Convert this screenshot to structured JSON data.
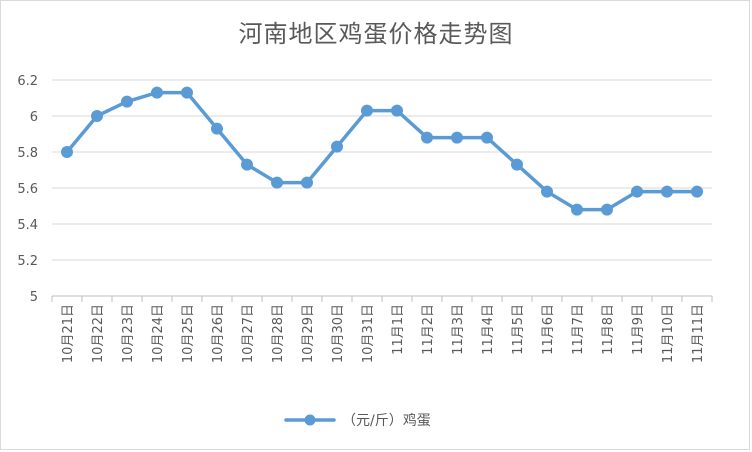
{
  "chart_data": {
    "type": "line",
    "title": "河南地区鸡蛋价格走势图",
    "categories": [
      "10月21日",
      "10月22日",
      "10月23日",
      "10月24日",
      "10月25日",
      "10月26日",
      "10月27日",
      "10月28日",
      "10月29日",
      "10月30日",
      "10月31日",
      "11月1日",
      "11月2日",
      "11月3日",
      "11月4日",
      "11月5日",
      "11月6日",
      "11月7日",
      "11月8日",
      "11月9日",
      "11月10日",
      "11月11日"
    ],
    "series": [
      {
        "name": "（元/斤）鸡蛋",
        "values": [
          5.8,
          6.0,
          6.08,
          6.13,
          6.13,
          5.93,
          5.73,
          5.63,
          5.63,
          5.83,
          6.03,
          6.03,
          5.88,
          5.88,
          5.88,
          5.73,
          5.58,
          5.48,
          5.48,
          5.58,
          5.58,
          5.58
        ]
      }
    ],
    "ylim": [
      5,
      6.2
    ],
    "yticks": [
      "5",
      "5.2",
      "5.4",
      "5.6",
      "5.8",
      "6",
      "6.2"
    ],
    "grid": true,
    "legend": "bottom",
    "color": "#5b9bd5",
    "xlabel": "",
    "ylabel": ""
  }
}
